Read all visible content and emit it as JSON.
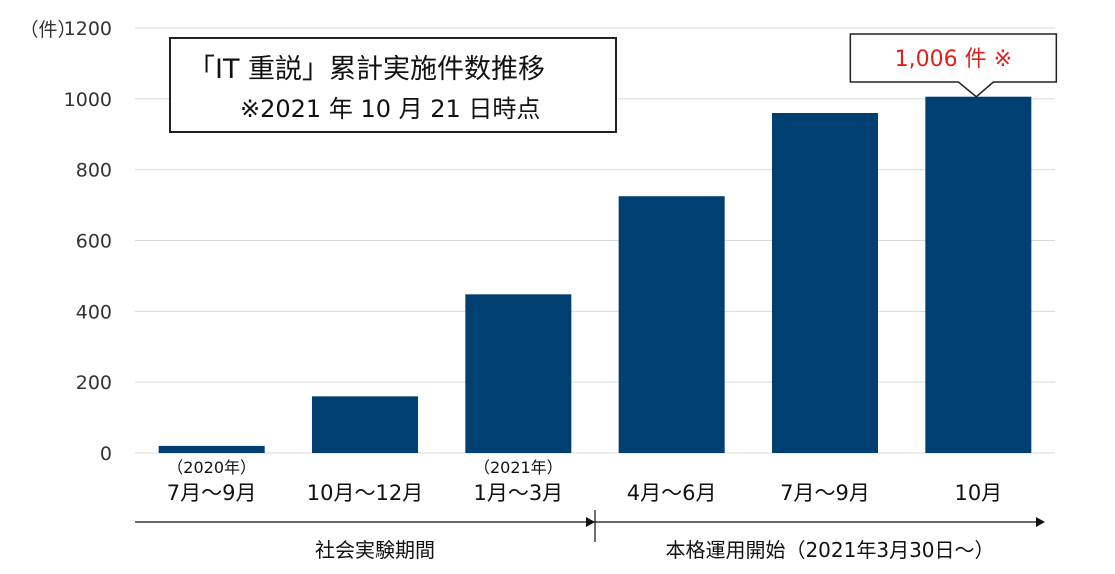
{
  "chart_data": {
    "type": "bar",
    "title": "「IT 重説」累計実施件数推移",
    "subtitle": "※2021 年 10 月 21 日時点",
    "ylabel": "（件）",
    "ylim": [
      0,
      1200
    ],
    "yticks": [
      "0",
      "200",
      "400",
      "600",
      "800",
      "1000",
      "1200"
    ],
    "categories": [
      "7月～9月",
      "10月～12月",
      "1月～3月",
      "4月～6月",
      "7月～9月",
      "10月"
    ],
    "year_labels": [
      "（2020年）",
      "",
      "（2021年）",
      "",
      "",
      ""
    ],
    "values": [
      20,
      160,
      448,
      725,
      960,
      1006
    ],
    "bar_color": "#003f72",
    "grid": true,
    "legend": "none",
    "annotation": {
      "text": "1,006 件 ※",
      "target_index": 5,
      "color": "#e0201b"
    },
    "periods": [
      {
        "label": "社会実験期間",
        "from_index": 0,
        "to_index": 2
      },
      {
        "label": "本格運用開始（2021年3月30日～）",
        "from_index": 3,
        "to_index": 5
      }
    ]
  }
}
